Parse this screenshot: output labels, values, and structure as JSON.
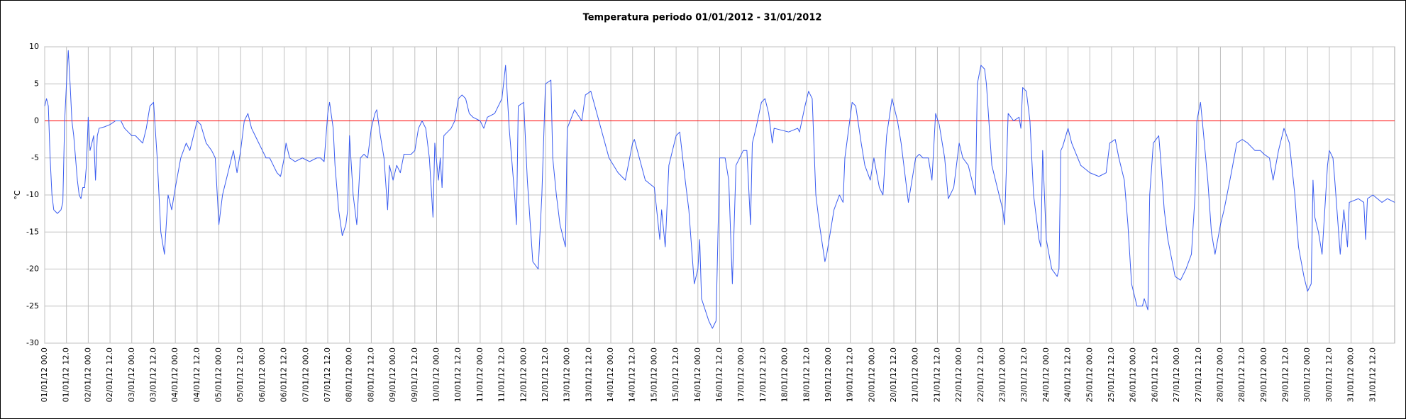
{
  "chart_data": {
    "type": "line",
    "title": "Temperatura periodo 01/01/2012 - 31/01/2012",
    "ylabel": "°C",
    "xlim": [
      0,
      744
    ],
    "ylim": [
      -30,
      10
    ],
    "yticks": [
      -30,
      -25,
      -20,
      -15,
      -10,
      -5,
      0,
      5,
      10
    ],
    "grid": true,
    "zero_line_color": "#ff0000",
    "xticks": [
      {
        "value": 0,
        "label": "01/01/12 00.0"
      },
      {
        "value": 12,
        "label": "01/01/12 12.0"
      },
      {
        "value": 24,
        "label": "02/01/12 00.0"
      },
      {
        "value": 36,
        "label": "02/01/12 12.0"
      },
      {
        "value": 48,
        "label": "03/01/12 00.0"
      },
      {
        "value": 60,
        "label": "03/01/12 12.0"
      },
      {
        "value": 72,
        "label": "04/01/12 00.0"
      },
      {
        "value": 84,
        "label": "04/01/12 12.0"
      },
      {
        "value": 96,
        "label": "05/01/12 00.0"
      },
      {
        "value": 108,
        "label": "05/01/12 12.0"
      },
      {
        "value": 120,
        "label": "06/01/12 00.0"
      },
      {
        "value": 132,
        "label": "06/01/12 12.0"
      },
      {
        "value": 144,
        "label": "07/01/12 00.0"
      },
      {
        "value": 156,
        "label": "07/01/12 12.0"
      },
      {
        "value": 168,
        "label": "08/01/12 00.0"
      },
      {
        "value": 180,
        "label": "08/01/12 12.0"
      },
      {
        "value": 192,
        "label": "09/01/12 00.0"
      },
      {
        "value": 204,
        "label": "09/01/12 12.0"
      },
      {
        "value": 216,
        "label": "10/01/12 00.0"
      },
      {
        "value": 228,
        "label": "10/01/12 12.0"
      },
      {
        "value": 240,
        "label": "11/01/12 00.0"
      },
      {
        "value": 252,
        "label": "11/01/12 12.0"
      },
      {
        "value": 264,
        "label": "12/01/12 00.0"
      },
      {
        "value": 276,
        "label": "12/01/12 12.0"
      },
      {
        "value": 288,
        "label": "13/01/12 00.0"
      },
      {
        "value": 300,
        "label": "13/01/12 12.0"
      },
      {
        "value": 312,
        "label": "14/01/12 00.0"
      },
      {
        "value": 324,
        "label": "14/01/12 12.0"
      },
      {
        "value": 336,
        "label": "15/01/12 00.0"
      },
      {
        "value": 348,
        "label": "15/01/12 12.0"
      },
      {
        "value": 360,
        "label": "16/01/12 00.0"
      },
      {
        "value": 372,
        "label": "16/01/12 12.0"
      },
      {
        "value": 384,
        "label": "17/01/12 00.0"
      },
      {
        "value": 396,
        "label": "17/01/12 12.0"
      },
      {
        "value": 408,
        "label": "18/01/12 00.0"
      },
      {
        "value": 420,
        "label": "18/01/12 12.0"
      },
      {
        "value": 432,
        "label": "19/01/12 00.0"
      },
      {
        "value": 444,
        "label": "19/01/12 12.0"
      },
      {
        "value": 456,
        "label": "20/01/12 00.0"
      },
      {
        "value": 468,
        "label": "20/01/12 12.0"
      },
      {
        "value": 480,
        "label": "21/01/12 00.0"
      },
      {
        "value": 492,
        "label": "21/01/12 12.0"
      },
      {
        "value": 504,
        "label": "22/01/12 00.0"
      },
      {
        "value": 516,
        "label": "22/01/12 12.0"
      },
      {
        "value": 528,
        "label": "23/01/12 00.0"
      },
      {
        "value": 540,
        "label": "23/01/12 12.0"
      },
      {
        "value": 552,
        "label": "24/01/12 00.0"
      },
      {
        "value": 564,
        "label": "24/01/12 12.0"
      },
      {
        "value": 576,
        "label": "25/01/12 00.0"
      },
      {
        "value": 588,
        "label": "25/01/12 12.0"
      },
      {
        "value": 600,
        "label": "26/01/12 00.0"
      },
      {
        "value": 612,
        "label": "26/01/12 12.0"
      },
      {
        "value": 624,
        "label": "27/01/12 00.0"
      },
      {
        "value": 636,
        "label": "27/01/12 12.0"
      },
      {
        "value": 648,
        "label": "28/01/12 00.0"
      },
      {
        "value": 660,
        "label": "28/01/12 12.0"
      },
      {
        "value": 672,
        "label": "29/01/12 00.0"
      },
      {
        "value": 684,
        "label": "29/01/12 12.0"
      },
      {
        "value": 696,
        "label": "30/01/12 00.0"
      },
      {
        "value": 708,
        "label": "30/01/12 12.0"
      },
      {
        "value": 720,
        "label": "31/01/12 00.0"
      },
      {
        "value": 732,
        "label": "31/01/12 12.0"
      }
    ],
    "series": [
      {
        "color": "#3a5cf0",
        "x": [
          0,
          1,
          2,
          3,
          4,
          5,
          7,
          9,
          10,
          11,
          12,
          13,
          14,
          15,
          16,
          17,
          18,
          19,
          20,
          21,
          22,
          23,
          24,
          25,
          26,
          27,
          28,
          29,
          30,
          33,
          36,
          39,
          42,
          44,
          46,
          48,
          50,
          52,
          54,
          56,
          58,
          60,
          62,
          64,
          66,
          68,
          70,
          72,
          75,
          78,
          80,
          82,
          84,
          86,
          89,
          92,
          94,
          96,
          98,
          100,
          102,
          104,
          106,
          108,
          110,
          112,
          114,
          116,
          118,
          120,
          122,
          124,
          126,
          128,
          130,
          132,
          133,
          135,
          138,
          142,
          146,
          150,
          152,
          154,
          156,
          157,
          159,
          160,
          162,
          164,
          166,
          167,
          168,
          170,
          172,
          174,
          176,
          178,
          180,
          182,
          183,
          185,
          187,
          189,
          190,
          192,
          194,
          196,
          198,
          202,
          204,
          206,
          208,
          210,
          212,
          214,
          215,
          217,
          218,
          219,
          220,
          222,
          224,
          226,
          228,
          230,
          232,
          234,
          236,
          240,
          242,
          244,
          248,
          252,
          254,
          256,
          259,
          260,
          261,
          264,
          266,
          269,
          272,
          274,
          276,
          279,
          280,
          282,
          284,
          287,
          288,
          292,
          296,
          298,
          301,
          311,
          316,
          320,
          324,
          325,
          331,
          336,
          339,
          340,
          342,
          344,
          348,
          350,
          353,
          355,
          358,
          360,
          361,
          362,
          366,
          368,
          370,
          372,
          375,
          377,
          379,
          381,
          385,
          387,
          389,
          390,
          392,
          395,
          397,
          399,
          401,
          402,
          410,
          415,
          416,
          419,
          421,
          423,
          425,
          427,
          430,
          431,
          435,
          438,
          440,
          441,
          445,
          447,
          450,
          452,
          455,
          457,
          460,
          462,
          464,
          467,
          470,
          472,
          476,
          478,
          480,
          482,
          484,
          487,
          489,
          491,
          493,
          496,
          498,
          501,
          504,
          506,
          509,
          513,
          514,
          516,
          518,
          519,
          522,
          525,
          528,
          529,
          531,
          534,
          537,
          538,
          539,
          541,
          543,
          545,
          548,
          549,
          550,
          552,
          555,
          558,
          559,
          560,
          561,
          564,
          566,
          571,
          576,
          581,
          585,
          587,
          590,
          592,
          595,
          597,
          599,
          602,
          605,
          606,
          608,
          609,
          611,
          614,
          615,
          617,
          619,
          623,
          626,
          629,
          632,
          634,
          635,
          637,
          638,
          641,
          643,
          645,
          648,
          650,
          654,
          657,
          660,
          663,
          667,
          670,
          672,
          675,
          677,
          680,
          682,
          683,
          686,
          689,
          691,
          694,
          696,
          698,
          699,
          700,
          702,
          704,
          707,
          708,
          710,
          711,
          714,
          716,
          718,
          719,
          724,
          727,
          728,
          729,
          732,
          737,
          740,
          744
        ],
        "values": [
          2,
          3,
          2,
          -5,
          -10,
          -12,
          -12.5,
          -12,
          -11,
          0,
          5,
          9.5,
          5,
          0,
          -2,
          -5,
          -8,
          -10,
          -10.5,
          -9,
          -9,
          -6,
          0.5,
          -4,
          -3,
          -2,
          -8,
          -2,
          -1,
          -0.8,
          -0.5,
          0,
          0,
          -1,
          -1.5,
          -2,
          -2,
          -2.5,
          -3,
          -1,
          2,
          2.5,
          -5,
          -15,
          -18,
          -10,
          -12,
          -9,
          -5,
          -3,
          -4,
          -2,
          0,
          -0.5,
          -3,
          -4,
          -5,
          -14,
          -10,
          -8,
          -6,
          -4,
          -7,
          -4,
          0,
          1,
          -1,
          -2,
          -3,
          -4,
          -5,
          -5,
          -6,
          -7,
          -7.5,
          -5,
          -3,
          -5,
          -5.5,
          -5,
          -5.5,
          -5,
          -5,
          -5.5,
          1,
          2.5,
          -1,
          -6,
          -12,
          -15.5,
          -14,
          -12,
          -2,
          -10,
          -14,
          -5,
          -4.5,
          -5,
          -1,
          1,
          1.5,
          -2,
          -5,
          -12,
          -6,
          -8,
          -6,
          -7,
          -4.5,
          -4.5,
          -4,
          -1,
          0,
          -1,
          -5,
          -13,
          -3,
          -8,
          -5,
          -9,
          -2,
          -1.5,
          -1,
          0,
          3,
          3.5,
          3,
          1,
          0.5,
          0,
          -1,
          0.5,
          1,
          3,
          7.5,
          -1,
          -10,
          -14,
          2,
          2.5,
          -8,
          -19,
          -20,
          -10,
          5,
          5.5,
          -5,
          -10,
          -14,
          -17,
          -1,
          1.5,
          0,
          3.5,
          4,
          -5,
          -7,
          -8,
          -3,
          -2.5,
          -8,
          -9,
          -16,
          -12,
          -17,
          -6,
          -2,
          -1.5,
          -8,
          -12,
          -22,
          -20,
          -16,
          -24,
          -27,
          -28,
          -27,
          -5,
          -5,
          -8,
          -22,
          -6,
          -4,
          -4,
          -14,
          -3,
          -1,
          2.5,
          3,
          1,
          -3,
          -1,
          -1.5,
          -1,
          -1.5,
          2,
          4,
          3,
          -10,
          -14,
          -19,
          -18,
          -12,
          -10,
          -11,
          -5,
          2.5,
          2,
          -3,
          -6,
          -8,
          -5,
          -9,
          -10,
          -2,
          3,
          0,
          -3,
          -11,
          -8,
          -5,
          -4.5,
          -5,
          -5,
          -8,
          1,
          -0.5,
          -5,
          -10.5,
          -9,
          -3,
          -5,
          -6,
          -10,
          5,
          7.5,
          7,
          5,
          -6,
          -9,
          -12,
          -14,
          1,
          0,
          0.5,
          -1,
          4.5,
          4,
          0,
          -10,
          -16,
          -17,
          -4,
          -16,
          -20,
          -21,
          -20,
          -4,
          -3.5,
          -1,
          -3,
          -6,
          -7,
          -7.5,
          -7,
          -3,
          -2.5,
          -5,
          -8,
          -14,
          -22,
          -25,
          -25,
          -24,
          -25.5,
          -10,
          -3,
          -2,
          -5,
          -12,
          -16,
          -21,
          -21.5,
          -20,
          -18,
          -10,
          0,
          2.5,
          0,
          -8,
          -15,
          -18,
          -14,
          -12,
          -7,
          -3,
          -2.5,
          -3,
          -4,
          -4,
          -4.5,
          -5,
          -8,
          -4,
          -2,
          -1,
          -3,
          -10,
          -17,
          -21,
          -23,
          -22,
          -8,
          -13,
          -15,
          -18,
          -6,
          -4,
          -5,
          -8,
          -18,
          -12,
          -17,
          -11,
          -10.5,
          -11,
          -16,
          -10.5,
          -10,
          -11,
          -10.5,
          -11
        ]
      }
    ]
  }
}
